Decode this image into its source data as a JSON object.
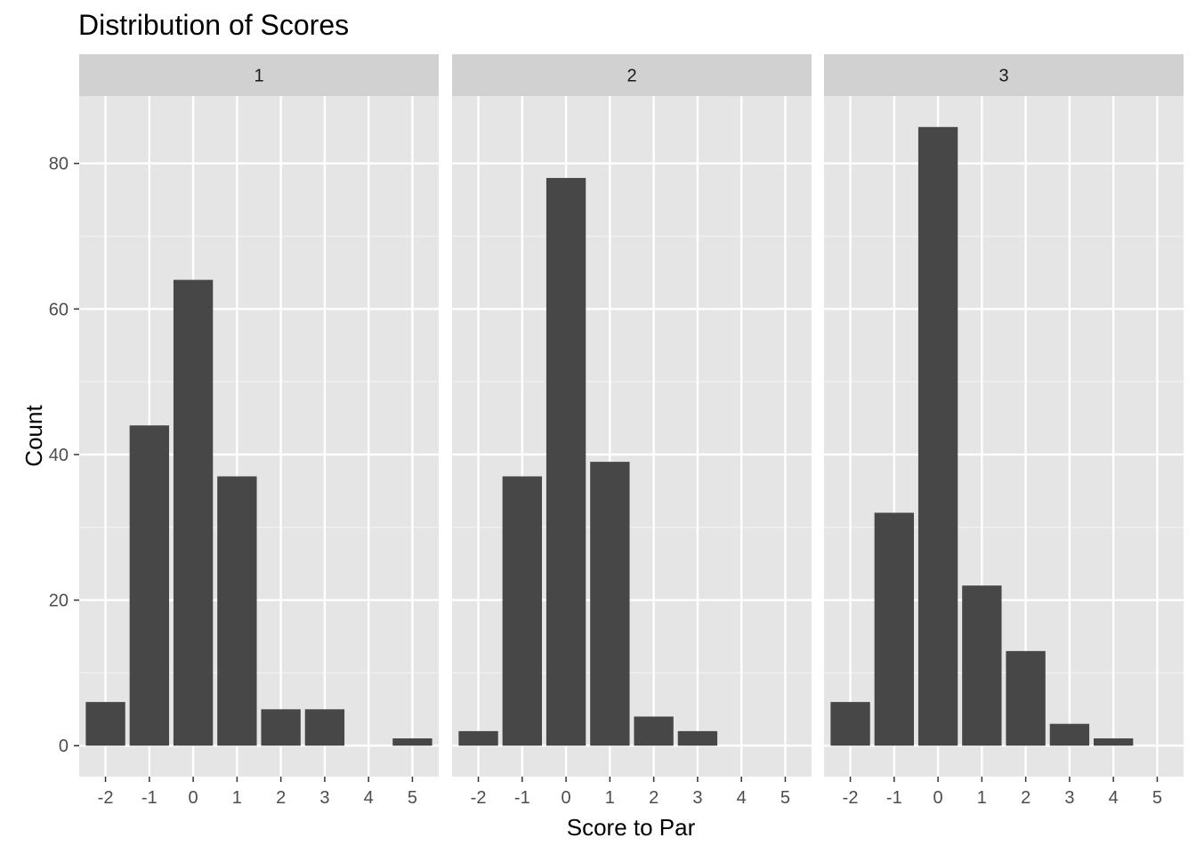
{
  "chart_data": {
    "type": "bar",
    "title": "Distribution of Scores",
    "xlabel": "Score to Par",
    "ylabel": "Count",
    "x_ticks": [
      "-2",
      "-1",
      "0",
      "1",
      "2",
      "3",
      "4",
      "5"
    ],
    "y_ticks": [
      "0",
      "20",
      "40",
      "60",
      "80"
    ],
    "xlim": [
      -2.6,
      5.6
    ],
    "ylim": [
      -4.25,
      89.25
    ],
    "grid": true,
    "bar_color": "#474747",
    "panel_background": "#e5e5e5",
    "strip_background": "#d1d1d1",
    "facets": [
      {
        "label": "1",
        "x": [
          -2,
          -1,
          0,
          1,
          2,
          3,
          5
        ],
        "values": [
          6,
          44,
          64,
          37,
          5,
          5,
          1
        ]
      },
      {
        "label": "2",
        "x": [
          -2,
          -1,
          0,
          1,
          2,
          3
        ],
        "values": [
          2,
          37,
          78,
          39,
          4,
          2
        ]
      },
      {
        "label": "3",
        "x": [
          -2,
          -1,
          0,
          1,
          2,
          3,
          4
        ],
        "values": [
          6,
          32,
          85,
          22,
          13,
          3,
          1
        ]
      }
    ]
  }
}
